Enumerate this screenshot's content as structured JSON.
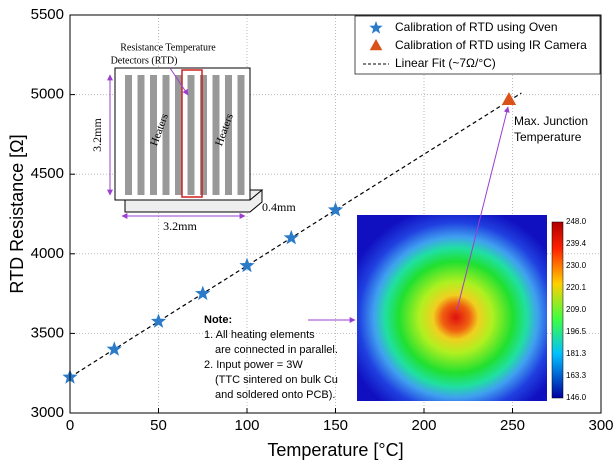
{
  "chart_data": {
    "type": "scatter",
    "xlabel": "Temperature [°C]",
    "ylabel": "RTD Resistance [Ω]",
    "xlim": [
      0,
      300
    ],
    "ylim": [
      3000,
      5500
    ],
    "xticks": [
      0,
      50,
      100,
      150,
      200,
      250,
      300
    ],
    "yticks": [
      3000,
      3500,
      4000,
      4500,
      5000,
      5500
    ],
    "grid": true,
    "legend": "upper right",
    "series": [
      {
        "name": "Calibration of RTD using Oven",
        "color": "#2b7bc8",
        "marker": "star",
        "x": [
          0,
          25,
          50,
          75,
          100,
          125,
          150
        ],
        "values": [
          3225,
          3400,
          3575,
          3750,
          3925,
          4100,
          4275
        ]
      },
      {
        "name": "Calibration of RTD using IR Camera",
        "color": "#d95319",
        "marker": "triangle",
        "x": [
          248
        ],
        "values": [
          4965
        ]
      },
      {
        "name": "Linear Fit (~7Ω/°C)",
        "color": "#000000",
        "marker": "dashed",
        "x": [
          0,
          255
        ],
        "values": [
          3225,
          5010
        ]
      }
    ],
    "annotations": {
      "max_junction": [
        "Max. Junction",
        "Temperature"
      ],
      "note": [
        "Note:",
        "1.  All heating elements",
        "are connected in parallel.",
        "2.  Input power = 3W",
        "(TTC sintered on bulk Cu",
        "and soldered onto PCB)."
      ],
      "rtd_label": [
        "Resistance Temperature",
        "Detectors (RTD)"
      ],
      "heaters": [
        "Heaters",
        "Heaters"
      ],
      "dimensions": [
        "3.2mm",
        "3.2mm",
        "0.4mm"
      ]
    },
    "colorbar_ticks": [
      {
        "value": 248,
        "label": "248.0"
      },
      {
        "value": 239.4,
        "label": "239.4"
      },
      {
        "value": 230,
        "label": "230.0"
      },
      {
        "value": 220.1,
        "label": "220.1"
      },
      {
        "value": 209,
        "label": "209.0"
      },
      {
        "value": 196.5,
        "label": "196.5"
      },
      {
        "value": 181.3,
        "label": "181.3"
      },
      {
        "value": 163.3,
        "label": "163.3"
      },
      {
        "value": 146,
        "label": "146.0"
      }
    ]
  }
}
